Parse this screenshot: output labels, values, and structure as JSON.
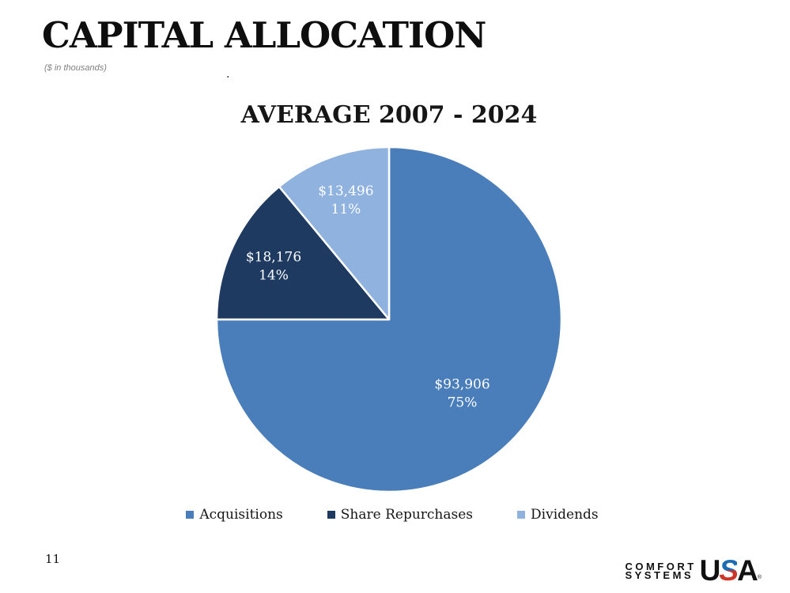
{
  "slide": {
    "title": "CAPITAL ALLOCATION",
    "subtitle": "($ in thousands)",
    "stray_mark": ".",
    "page_number": "11"
  },
  "chart_data": {
    "type": "pie",
    "title": "AVERAGE 2007 - 2024",
    "start_angle_deg": 0,
    "direction": "clockwise",
    "legend_position": "bottom",
    "label_text_color": "#ffffff",
    "slices": [
      {
        "label": "Acquisitions",
        "value": 93906,
        "value_label": "$93,906",
        "percent": 75,
        "percent_label": "75%",
        "color": "#4A7EBB"
      },
      {
        "label": "Share Repurchases",
        "value": 18176,
        "value_label": "$18,176",
        "percent": 14,
        "percent_label": "14%",
        "color": "#1E3A60"
      },
      {
        "label": "Dividends",
        "value": 13496,
        "value_label": "$13,496",
        "percent": 11,
        "percent_label": "11%",
        "color": "#8FB2DF"
      }
    ]
  },
  "logo": {
    "line1": "COMFORT",
    "line2": "SYSTEMS",
    "wordmark_u": "U",
    "wordmark_s": "S",
    "wordmark_a": "A",
    "registered": "®",
    "blue": "#1C6DB5",
    "red": "#CC3527"
  }
}
